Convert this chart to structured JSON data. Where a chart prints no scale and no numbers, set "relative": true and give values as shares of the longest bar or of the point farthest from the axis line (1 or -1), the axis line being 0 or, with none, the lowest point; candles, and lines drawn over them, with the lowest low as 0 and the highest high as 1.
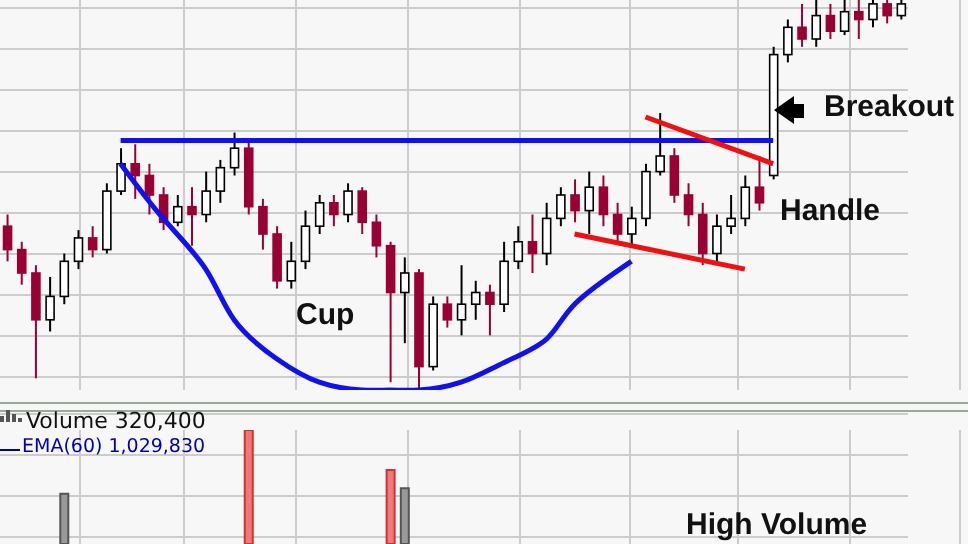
{
  "chart_data": [
    {
      "type": "candlestick",
      "relative": true,
      "grid": true,
      "legend": false,
      "categories": [
        null,
        null,
        null,
        null,
        null,
        null,
        null,
        null,
        null,
        null,
        null,
        null,
        null,
        null,
        null,
        null,
        null,
        null,
        null,
        null,
        null,
        null,
        null,
        null,
        null,
        null,
        null,
        null,
        null,
        null,
        null,
        null,
        null,
        null,
        null,
        null,
        null,
        null,
        null,
        null,
        null,
        null,
        null,
        null,
        null,
        null,
        null,
        null,
        null,
        null,
        null,
        null,
        null,
        null,
        null,
        null,
        null,
        null,
        null,
        null,
        null,
        null,
        null,
        null
      ],
      "ohlc": [
        [
          0.42,
          0.45,
          0.33,
          0.36
        ],
        [
          0.36,
          0.38,
          0.27,
          0.3
        ],
        [
          0.3,
          0.32,
          0.03,
          0.18
        ],
        [
          0.18,
          0.29,
          0.15,
          0.24
        ],
        [
          0.24,
          0.35,
          0.22,
          0.33
        ],
        [
          0.33,
          0.41,
          0.31,
          0.39
        ],
        [
          0.39,
          0.42,
          0.34,
          0.36
        ],
        [
          0.36,
          0.53,
          0.35,
          0.51
        ],
        [
          0.51,
          0.62,
          0.5,
          0.58
        ],
        [
          0.58,
          0.63,
          0.49,
          0.55
        ],
        [
          0.55,
          0.58,
          0.45,
          0.5
        ],
        [
          0.5,
          0.52,
          0.41,
          0.43
        ],
        [
          0.43,
          0.5,
          0.42,
          0.47
        ],
        [
          0.47,
          0.52,
          0.37,
          0.45
        ],
        [
          0.45,
          0.56,
          0.43,
          0.51
        ],
        [
          0.51,
          0.59,
          0.48,
          0.57
        ],
        [
          0.57,
          0.66,
          0.55,
          0.62
        ],
        [
          0.62,
          0.64,
          0.45,
          0.47
        ],
        [
          0.47,
          0.49,
          0.36,
          0.4
        ],
        [
          0.4,
          0.42,
          0.26,
          0.28
        ],
        [
          0.28,
          0.38,
          0.26,
          0.33
        ],
        [
          0.33,
          0.46,
          0.31,
          0.42
        ],
        [
          0.42,
          0.5,
          0.4,
          0.48
        ],
        [
          0.48,
          0.5,
          0.42,
          0.45
        ],
        [
          0.45,
          0.53,
          0.43,
          0.51
        ],
        [
          0.51,
          0.52,
          0.4,
          0.43
        ],
        [
          0.43,
          0.45,
          0.34,
          0.37
        ],
        [
          0.37,
          0.38,
          0.02,
          0.25
        ],
        [
          0.25,
          0.34,
          0.12,
          0.3
        ],
        [
          0.3,
          0.31,
          0.0,
          0.06
        ],
        [
          0.06,
          0.24,
          0.05,
          0.22
        ],
        [
          0.22,
          0.24,
          0.16,
          0.18
        ],
        [
          0.18,
          0.32,
          0.14,
          0.22
        ],
        [
          0.22,
          0.28,
          0.18,
          0.25
        ],
        [
          0.25,
          0.27,
          0.14,
          0.22
        ],
        [
          0.22,
          0.38,
          0.2,
          0.33
        ],
        [
          0.33,
          0.42,
          0.31,
          0.38
        ],
        [
          0.38,
          0.45,
          0.3,
          0.35
        ],
        [
          0.35,
          0.48,
          0.32,
          0.44
        ],
        [
          0.44,
          0.52,
          0.42,
          0.5
        ],
        [
          0.5,
          0.54,
          0.43,
          0.46
        ],
        [
          0.46,
          0.56,
          0.4,
          0.52
        ],
        [
          0.52,
          0.55,
          0.42,
          0.45
        ],
        [
          0.45,
          0.48,
          0.38,
          0.4
        ],
        [
          0.4,
          0.47,
          0.37,
          0.44
        ],
        [
          0.44,
          0.58,
          0.42,
          0.56
        ],
        [
          0.56,
          0.71,
          0.55,
          0.6
        ],
        [
          0.6,
          0.62,
          0.48,
          0.5
        ],
        [
          0.5,
          0.53,
          0.42,
          0.45
        ],
        [
          0.45,
          0.48,
          0.32,
          0.35
        ],
        [
          0.35,
          0.45,
          0.33,
          0.42
        ],
        [
          0.42,
          0.5,
          0.4,
          0.44
        ],
        [
          0.44,
          0.55,
          0.42,
          0.52
        ],
        [
          0.52,
          0.6,
          0.46,
          0.48
        ],
        [
          0.55,
          0.88,
          0.54,
          0.86
        ],
        [
          0.86,
          0.95,
          0.84,
          0.93
        ],
        [
          0.93,
          0.99,
          0.88,
          0.9
        ],
        [
          0.9,
          1,
          0.88,
          0.96
        ],
        [
          0.96,
          0.99,
          0.9,
          0.92
        ],
        [
          0.92,
          1,
          0.91,
          0.97
        ],
        [
          0.97,
          1,
          0.9,
          0.95
        ],
        [
          0.95,
          1,
          0.93,
          0.99
        ],
        [
          0.99,
          1,
          0.94,
          0.96
        ],
        [
          0.96,
          1,
          0.95,
          0.99
        ]
      ],
      "series": [
        {
          "type": "line",
          "color": "#1111ee",
          "values": [
            null,
            null,
            null,
            null,
            null,
            null,
            null,
            null,
            0.64,
            0.64,
            0.64,
            0.64,
            0.64,
            0.64,
            0.64,
            0.64,
            0.64,
            0.64,
            0.64,
            0.64,
            0.64,
            0.64,
            0.64,
            0.64,
            0.64,
            0.64,
            0.64,
            0.64,
            0.64,
            0.64,
            0.64,
            0.64,
            0.64,
            0.64,
            0.64,
            0.64,
            0.64,
            0.64,
            0.64,
            0.64,
            0.64,
            0.64,
            0.64,
            0.64,
            0.64,
            0.64,
            0.64,
            0.64,
            0.64,
            0.64,
            0.64,
            0.64,
            0.64,
            0.64,
            0.64,
            null,
            null,
            null,
            null,
            null,
            null,
            null,
            null,
            null
          ]
        },
        {
          "type": "line",
          "color": "#1111ee",
          "values": [
            null,
            null,
            null,
            null,
            null,
            null,
            null,
            null,
            0.58,
            null,
            null,
            0.44,
            null,
            null,
            0.31,
            null,
            0.18,
            null,
            null,
            0.08,
            null,
            null,
            0.02,
            null,
            null,
            0,
            null,
            0,
            null,
            0,
            null,
            null,
            0.02,
            null,
            null,
            0.07,
            null,
            null,
            0.13,
            null,
            0.22,
            null,
            null,
            null,
            0.33,
            null,
            null,
            null,
            null,
            null,
            null,
            null,
            null,
            null,
            null,
            null,
            null,
            null,
            null,
            null,
            null,
            null,
            null,
            null
          ]
        },
        {
          "type": "line",
          "color": "#ee1111",
          "values": [
            null,
            null,
            null,
            null,
            null,
            null,
            null,
            null,
            null,
            null,
            null,
            null,
            null,
            null,
            null,
            null,
            null,
            null,
            null,
            null,
            null,
            null,
            null,
            null,
            null,
            null,
            null,
            null,
            null,
            null,
            null,
            null,
            null,
            null,
            null,
            null,
            null,
            null,
            null,
            null,
            null,
            null,
            null,
            null,
            null,
            0.7,
            null,
            null,
            null,
            null,
            null,
            null,
            null,
            null,
            0.58,
            null,
            null,
            null,
            null,
            null,
            null,
            null,
            null,
            null
          ]
        },
        {
          "type": "line",
          "color": "#ee1111",
          "values": [
            null,
            null,
            null,
            null,
            null,
            null,
            null,
            null,
            null,
            null,
            null,
            null,
            null,
            null,
            null,
            null,
            null,
            null,
            null,
            null,
            null,
            null,
            null,
            null,
            null,
            null,
            null,
            null,
            null,
            null,
            null,
            null,
            null,
            null,
            null,
            null,
            null,
            null,
            null,
            null,
            0.4,
            null,
            null,
            null,
            null,
            null,
            null,
            null,
            null,
            null,
            null,
            null,
            0.31,
            null,
            null,
            null,
            null,
            null,
            null,
            null,
            null,
            null,
            null,
            null
          ]
        }
      ],
      "annotations": [
        "Cup",
        "Handle",
        "Breakout"
      ]
    },
    {
      "type": "bar",
      "relative": true,
      "grid": true,
      "legend": false,
      "categories": [
        null,
        null,
        null,
        null,
        null,
        null,
        null,
        null,
        null,
        null,
        null,
        null,
        null,
        null,
        null,
        null,
        null,
        null,
        null,
        null,
        null,
        null,
        null,
        null,
        null,
        null,
        null,
        null,
        null,
        null,
        null,
        null,
        null,
        null,
        null,
        null,
        null,
        null,
        null,
        null,
        null,
        null,
        null,
        null,
        null,
        null,
        null,
        null,
        null,
        null,
        null,
        null,
        null,
        null,
        null,
        null,
        null,
        null,
        null,
        null,
        null,
        null,
        null,
        null
      ],
      "values": [
        null,
        null,
        null,
        null,
        0.44,
        null,
        null,
        null,
        null,
        null,
        null,
        null,
        null,
        null,
        null,
        null,
        null,
        1,
        null,
        null,
        null,
        null,
        null,
        null,
        null,
        null,
        null,
        0.65,
        0.49,
        null,
        null,
        null,
        null,
        null,
        null,
        null,
        null,
        null,
        null,
        null,
        null,
        null,
        null,
        null,
        null,
        null,
        null,
        null,
        null,
        null,
        null,
        null,
        null,
        null,
        null,
        null,
        null,
        null,
        null,
        null,
        null,
        null,
        null,
        null
      ],
      "colors": [
        "#999999",
        "#999999",
        "#999999",
        "#999999",
        "#999999",
        "#999999",
        "#999999",
        "#999999",
        "#999999",
        "#999999",
        "#999999",
        "#999999",
        "#999999",
        "#999999",
        "#999999",
        "#999999",
        "#999999",
        "#f07878",
        "#999999",
        "#999999",
        "#999999",
        "#999999",
        "#999999",
        "#999999",
        "#999999",
        "#999999",
        "#999999",
        "#f07878",
        "#999999",
        "#999999",
        "#999999",
        "#999999",
        "#999999",
        "#999999",
        "#999999",
        "#999999",
        "#999999",
        "#999999",
        "#999999",
        "#999999",
        "#999999",
        "#999999",
        "#999999",
        "#999999",
        "#999999",
        "#999999",
        "#999999",
        "#999999",
        "#999999",
        "#999999",
        "#999999",
        "#999999",
        "#999999",
        "#999999",
        "#999999",
        "#999999",
        "#999999",
        "#999999",
        "#999999",
        "#999999",
        "#999999",
        "#999999",
        "#999999",
        "#999999"
      ],
      "annotations": [
        "Volume 320,400",
        "EMA(60) 1,029,830",
        "High Volume"
      ]
    }
  ]
}
